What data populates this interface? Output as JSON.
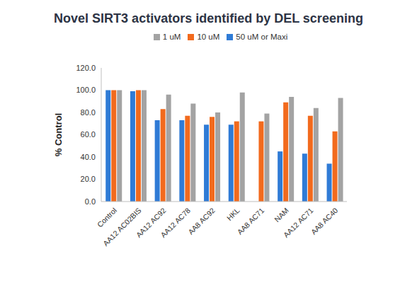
{
  "chart_data": {
    "type": "bar",
    "title": "Novel SIRT3 activators identified by DEL screening",
    "y_label": "% Control",
    "categories": [
      "Control",
      "AA12 AC02BIS",
      "AA12 AC92",
      "AA12 AC78",
      "AA8 AC92",
      "HKL",
      "AA8 AC71",
      "NAM",
      "AA12 AC71",
      "AA8 AC40"
    ],
    "series": [
      {
        "name": "50 uM or Maxi",
        "color": "#2f7bd6",
        "values": [
          100,
          99,
          73,
          73,
          69,
          69,
          null,
          45,
          43,
          34
        ]
      },
      {
        "name": "10 uM",
        "color": "#f26a1d",
        "values": [
          100,
          100,
          83,
          77,
          76,
          72,
          72,
          89,
          77,
          63
        ]
      },
      {
        "name": "1 uM",
        "color": "#a3a3a3",
        "values": [
          100,
          100,
          96,
          88,
          80,
          98,
          79,
          94,
          84,
          93
        ]
      }
    ],
    "ylim": [
      0,
      120
    ],
    "yticks": [
      {
        "value": 0,
        "label": "0.0"
      },
      {
        "value": 20,
        "label": "20.0"
      },
      {
        "value": 40,
        "label": "40.0"
      },
      {
        "value": 60,
        "label": "60.0"
      },
      {
        "value": 80,
        "label": "80.0"
      },
      {
        "value": 100,
        "label": "100.0"
      },
      {
        "value": 120,
        "label": "120.0"
      }
    ],
    "legend": "top",
    "grid": false
  }
}
